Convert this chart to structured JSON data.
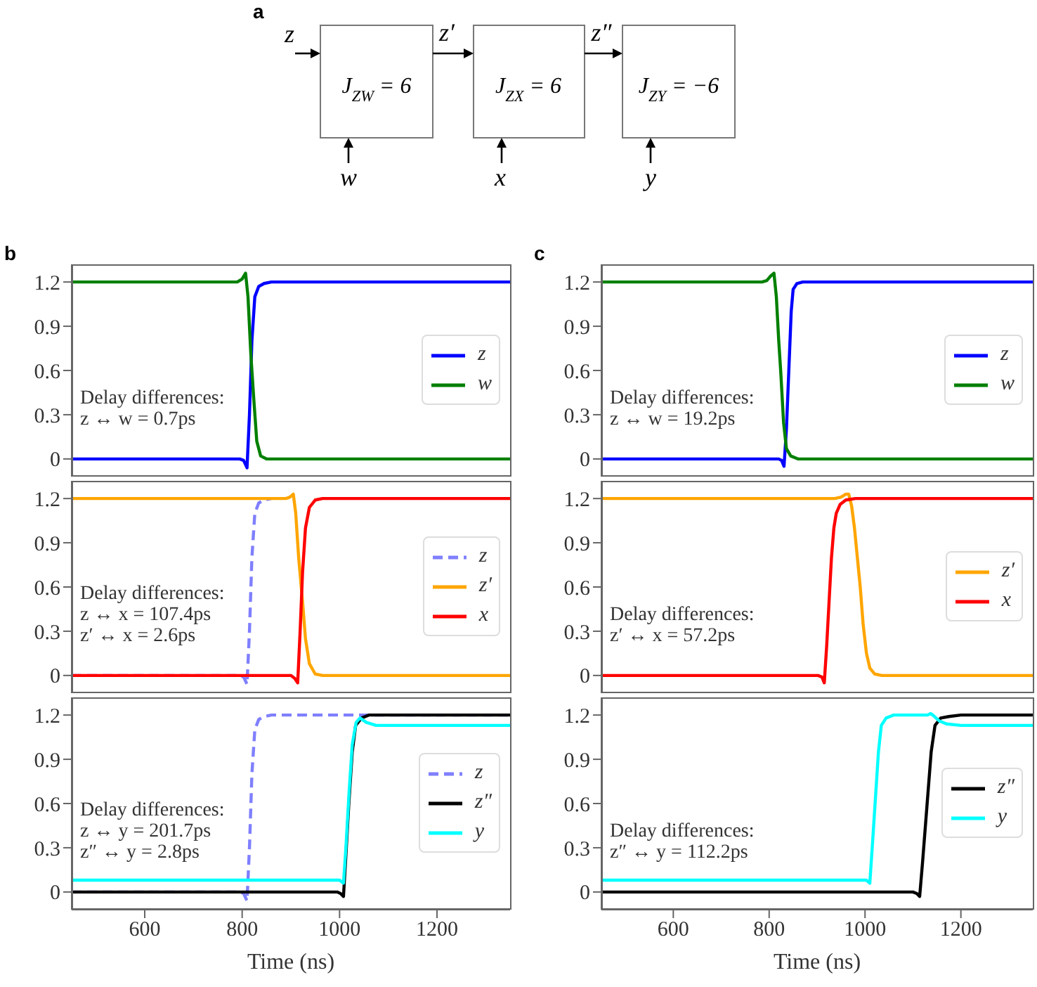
{
  "chart_data": [
    {
      "type": "other",
      "title": "a",
      "annotations": [
        "z",
        "z′",
        "z″",
        "J$_{ZW}$ = 6",
        "J$_{ZX}$ = 6",
        "J$_{ZY}$ = −6",
        "w",
        "x",
        "y"
      ]
    },
    {
      "type": "line",
      "title": "b",
      "xlim": [
        450,
        1350
      ],
      "ylim": [
        -0.12,
        1.32
      ],
      "yticks": [
        0,
        0.3,
        0.6,
        0.9,
        1.2
      ],
      "tick_labels": "y",
      "legend": "right",
      "annotations": [
        "Delay differences:",
        "z ↔ w = 0.7ps"
      ],
      "series": [
        {
          "name": "z",
          "color": "#0000ff",
          "x": [
            450,
            795,
            803,
            810,
            815,
            820,
            826,
            834,
            845,
            860,
            1350
          ],
          "values": [
            0,
            0,
            -0.01,
            -0.06,
            0.3,
            0.8,
            1.1,
            1.17,
            1.19,
            1.2,
            1.2
          ]
        },
        {
          "name": "w",
          "color": "#008000",
          "x": [
            450,
            790,
            800,
            807,
            812,
            818,
            824,
            830,
            838,
            850,
            1350
          ],
          "values": [
            1.2,
            1.2,
            1.22,
            1.26,
            1.1,
            0.7,
            0.4,
            0.12,
            0.02,
            0,
            0
          ]
        }
      ]
    },
    {
      "type": "line",
      "xlim": [
        450,
        1350
      ],
      "ylim": [
        -0.12,
        1.32
      ],
      "yticks": [
        0,
        0.3,
        0.6,
        0.9,
        1.2
      ],
      "tick_labels": "y",
      "legend": "right",
      "annotations": [
        "Delay differences:",
        "z ↔ x = 107.4ps",
        "z′ ↔ x = 2.6ps"
      ],
      "series": [
        {
          "name": "z",
          "color": "#7f7fff",
          "line_style": "dashed",
          "x": [
            450,
            795,
            803,
            810,
            815,
            820,
            826,
            834,
            845,
            860
          ],
          "values": [
            0,
            0,
            -0.01,
            -0.06,
            0.3,
            0.8,
            1.1,
            1.17,
            1.19,
            1.2
          ]
        },
        {
          "name": "z′",
          "color": "#ffa500",
          "x": [
            450,
            890,
            898,
            905,
            910,
            916,
            924,
            930,
            938,
            950,
            965,
            1350
          ],
          "values": [
            1.2,
            1.2,
            1.21,
            1.23,
            1.1,
            0.8,
            0.5,
            0.25,
            0.08,
            0.01,
            0,
            0
          ]
        },
        {
          "name": "x",
          "color": "#ff0000",
          "x": [
            450,
            900,
            908,
            914,
            919,
            924,
            930,
            938,
            950,
            965,
            1350
          ],
          "values": [
            0,
            0,
            -0.02,
            -0.05,
            0.3,
            0.7,
            1.0,
            1.14,
            1.19,
            1.2,
            1.2
          ]
        }
      ]
    },
    {
      "type": "line",
      "xlabel": "Time (ns)",
      "xlim": [
        450,
        1350
      ],
      "ylim": [
        -0.12,
        1.32
      ],
      "xticks": [
        600,
        800,
        1000,
        1200
      ],
      "yticks": [
        0,
        0.3,
        0.6,
        0.9,
        1.2
      ],
      "legend": "right",
      "annotations": [
        "Delay differences:",
        "z ↔ y = 201.7ps",
        "z″ ↔ y = 2.8ps"
      ],
      "series": [
        {
          "name": "z",
          "color": "#7f7fff",
          "line_style": "dashed",
          "x": [
            450,
            795,
            803,
            810,
            815,
            820,
            826,
            834,
            845,
            860,
            1350
          ],
          "values": [
            0,
            0,
            -0.01,
            -0.06,
            0.3,
            0.8,
            1.1,
            1.17,
            1.19,
            1.2,
            1.2
          ]
        },
        {
          "name": "z″",
          "color": "#000000",
          "x": [
            450,
            995,
            1002,
            1008,
            1013,
            1019,
            1026,
            1033,
            1045,
            1060,
            1350
          ],
          "values": [
            0,
            0,
            -0.01,
            -0.03,
            0.25,
            0.6,
            0.95,
            1.13,
            1.18,
            1.2,
            1.2
          ]
        },
        {
          "name": "y",
          "color": "#00ffff",
          "x": [
            450,
            1000,
            1008,
            1013,
            1019,
            1026,
            1034,
            1042,
            1055,
            1075,
            1350
          ],
          "values": [
            0.08,
            0.08,
            0.06,
            0.3,
            0.65,
            1.0,
            1.15,
            1.18,
            1.15,
            1.13,
            1.13
          ]
        }
      ]
    },
    {
      "type": "line",
      "title": "c",
      "xlim": [
        450,
        1350
      ],
      "ylim": [
        -0.12,
        1.32
      ],
      "yticks": [
        0,
        0.3,
        0.6,
        0.9,
        1.2
      ],
      "tick_labels": "y",
      "legend": "right",
      "annotations": [
        "Delay differences:",
        "z ↔ w = 19.2ps"
      ],
      "series": [
        {
          "name": "z",
          "color": "#0000ff",
          "x": [
            450,
            820,
            826,
            831,
            836,
            841,
            846,
            850,
            858,
            870,
            1350
          ],
          "values": [
            0,
            0,
            -0.01,
            -0.05,
            0.2,
            0.6,
            1.0,
            1.15,
            1.19,
            1.2,
            1.2
          ]
        },
        {
          "name": "w",
          "color": "#008000",
          "x": [
            450,
            785,
            795,
            803,
            810,
            815,
            820,
            824,
            830,
            836,
            845,
            860,
            1350
          ],
          "values": [
            1.2,
            1.2,
            1.21,
            1.24,
            1.26,
            1.1,
            0.8,
            0.6,
            0.25,
            0.07,
            0.02,
            0,
            0
          ]
        }
      ]
    },
    {
      "type": "line",
      "xlim": [
        450,
        1350
      ],
      "ylim": [
        -0.12,
        1.32
      ],
      "yticks": [
        0,
        0.3,
        0.6,
        0.9,
        1.2
      ],
      "tick_labels": "y",
      "legend": "right",
      "annotations": [
        "Delay differences:",
        "z′ ↔ x = 57.2ps"
      ],
      "series": [
        {
          "name": "z′",
          "color": "#ffa500",
          "x": [
            450,
            937,
            950,
            960,
            966,
            972,
            978,
            984,
            990,
            996,
            1003,
            1010,
            1020,
            1035,
            1350
          ],
          "values": [
            1.2,
            1.2,
            1.21,
            1.23,
            1.23,
            1.15,
            1.0,
            0.8,
            0.6,
            0.35,
            0.15,
            0.05,
            0.01,
            0,
            0
          ]
        },
        {
          "name": "x",
          "color": "#ff0000",
          "x": [
            450,
            902,
            910,
            915,
            920,
            925,
            930,
            935,
            940,
            948,
            960,
            980,
            1350
          ],
          "values": [
            0,
            0,
            -0.01,
            -0.05,
            0.2,
            0.5,
            0.8,
            1.0,
            1.1,
            1.16,
            1.19,
            1.2,
            1.2
          ]
        }
      ]
    },
    {
      "type": "line",
      "xlabel": "Time (ns)",
      "xlim": [
        450,
        1350
      ],
      "ylim": [
        -0.12,
        1.32
      ],
      "xticks": [
        600,
        800,
        1000,
        1200
      ],
      "yticks": [
        0,
        0.3,
        0.6,
        0.9,
        1.2
      ],
      "legend": "right",
      "annotations": [
        "Delay differences:",
        "z″ ↔ y = 112.2ps"
      ],
      "series": [
        {
          "name": "z″",
          "color": "#000000",
          "x": [
            450,
            1100,
            1108,
            1114,
            1120,
            1126,
            1132,
            1138,
            1146,
            1158,
            1175,
            1200,
            1350
          ],
          "values": [
            0,
            0,
            -0.01,
            -0.03,
            0.2,
            0.45,
            0.7,
            0.95,
            1.13,
            1.18,
            1.19,
            1.2,
            1.2
          ]
        },
        {
          "name": "y",
          "color": "#00ffff",
          "x": [
            450,
            1003,
            1010,
            1015,
            1022,
            1028,
            1034,
            1044,
            1060,
            1130,
            1137,
            1145,
            1155,
            1170,
            1200,
            1350
          ],
          "values": [
            0.08,
            0.08,
            0.06,
            0.3,
            0.65,
            0.95,
            1.13,
            1.18,
            1.2,
            1.2,
            1.21,
            1.19,
            1.16,
            1.14,
            1.13,
            1.13
          ]
        }
      ]
    }
  ]
}
